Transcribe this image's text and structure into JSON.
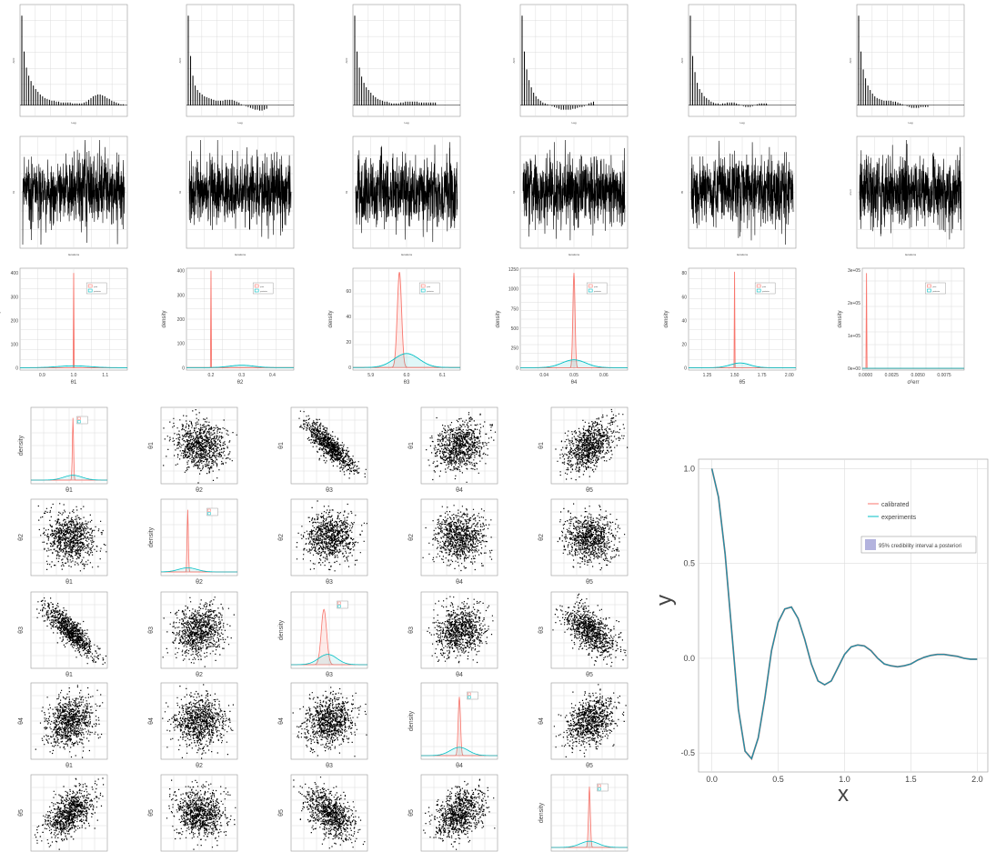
{
  "colors": {
    "calibrated": "#F8766D",
    "experiments": "#00BFC4",
    "band": "#b3b3de",
    "ink": "#000000",
    "grid": "#dcdcdc",
    "frame": "#9a9a9a"
  },
  "rows": {
    "acf_ylabel": "ACF",
    "acf_xlabel": "Lag",
    "trace_xlabel": "iterations",
    "trace_ylabels": [
      "θ1",
      "θ2",
      "θ3",
      "θ4",
      "θ5",
      "σ²err"
    ],
    "density_ylabel": "density",
    "density_xlabels": [
      "θ1",
      "θ2",
      "θ3",
      "θ4",
      "θ5",
      "σ²err"
    ],
    "legend_labels": [
      "prior",
      "posterior"
    ]
  },
  "pairs": {
    "labels": [
      "θ1",
      "θ2",
      "θ3",
      "θ4",
      "θ5"
    ],
    "density_ylabel": "density"
  },
  "chart_data": [
    {
      "type": "bar",
      "name": "acf",
      "title": "",
      "xlabel": "Lag",
      "ylabel": "ACF",
      "panels": 6,
      "values": [
        [
          1.0,
          0.6,
          0.42,
          0.33,
          0.27,
          0.22,
          0.18,
          0.15,
          0.12,
          0.1,
          0.08,
          0.07,
          0.06,
          0.05,
          0.05,
          0.04,
          0.04,
          0.03,
          0.03,
          0.03,
          0.03,
          0.03,
          0.02,
          0.02,
          0.02,
          0.02,
          0.02,
          0.03,
          0.04,
          0.06,
          0.08,
          0.1,
          0.11,
          0.12,
          0.12,
          0.11,
          0.1,
          0.08,
          0.07,
          0.05,
          0.04,
          0.03,
          0.02,
          0.01,
          0.01
        ],
        [
          1.0,
          0.55,
          0.33,
          0.22,
          0.17,
          0.14,
          0.12,
          0.1,
          0.09,
          0.08,
          0.07,
          0.06,
          0.05,
          0.05,
          0.05,
          0.05,
          0.06,
          0.06,
          0.06,
          0.06,
          0.05,
          0.04,
          0.03,
          0.01,
          0.0,
          -0.01,
          -0.02,
          -0.03,
          -0.04,
          -0.05,
          -0.05,
          -0.06,
          -0.06,
          -0.05,
          -0.04
        ],
        [
          1.0,
          0.6,
          0.42,
          0.32,
          0.25,
          0.2,
          0.17,
          0.14,
          0.11,
          0.09,
          0.07,
          0.06,
          0.05,
          0.04,
          0.04,
          0.03,
          0.02,
          0.02,
          0.02,
          0.02,
          0.03,
          0.03,
          0.04,
          0.04,
          0.04,
          0.04,
          0.04,
          0.04,
          0.03,
          0.03,
          0.03,
          0.03,
          0.03,
          0.03,
          0.03,
          0.03
        ],
        [
          1.0,
          0.6,
          0.4,
          0.28,
          0.2,
          0.14,
          0.1,
          0.07,
          0.05,
          0.03,
          0.02,
          0.01,
          0.0,
          -0.01,
          -0.02,
          -0.03,
          -0.04,
          -0.05,
          -0.05,
          -0.05,
          -0.05,
          -0.05,
          -0.04,
          -0.04,
          -0.03,
          -0.02,
          -0.02,
          -0.01,
          0.0,
          0.02,
          0.03,
          0.04
        ],
        [
          1.0,
          0.55,
          0.37,
          0.25,
          0.18,
          0.14,
          0.1,
          0.08,
          0.06,
          0.04,
          0.03,
          0.02,
          0.02,
          0.01,
          0.02,
          0.02,
          0.03,
          0.03,
          0.03,
          0.03,
          0.02,
          0.01,
          0.0,
          -0.01,
          -0.02,
          -0.02,
          -0.02,
          -0.01,
          0.0,
          0.01,
          0.02,
          0.02,
          0.02,
          0.02
        ],
        [
          1.0,
          0.6,
          0.4,
          0.3,
          0.22,
          0.17,
          0.13,
          0.1,
          0.08,
          0.07,
          0.06,
          0.05,
          0.05,
          0.05,
          0.05,
          0.04,
          0.04,
          0.03,
          0.02,
          0.01,
          0.0,
          -0.01,
          -0.02,
          -0.03,
          -0.03,
          -0.03,
          -0.03,
          -0.02,
          -0.02,
          -0.02,
          -0.02
        ]
      ]
    },
    {
      "type": "density",
      "name": "marginal-densities",
      "title": "",
      "ylabel": "density",
      "series": [
        {
          "name": "prior"
        },
        {
          "name": "posterior"
        }
      ],
      "panels": [
        {
          "xlabel": "θ1",
          "xticks": [
            "0.9",
            "1.0",
            "1.1"
          ],
          "xlim": [
            0.83,
            1.17
          ],
          "yticks": [
            "0",
            "100",
            "200",
            "300",
            "400"
          ],
          "ylim": [
            -10,
            420
          ],
          "curves": [
            {
              "kind": "spike",
              "mu": 1.0,
              "sd": 0.001,
              "peak": 400
            },
            {
              "kind": "gauss",
              "mu": 1.0,
              "sd": 0.05,
              "peak": 8
            }
          ]
        },
        {
          "xlabel": "θ2",
          "xticks": [
            "0.2",
            "0.3",
            "0.4"
          ],
          "xlim": [
            0.12,
            0.47
          ],
          "yticks": [
            "0",
            "100",
            "200",
            "300",
            "400"
          ],
          "ylim": [
            -10,
            410
          ],
          "curves": [
            {
              "kind": "spike",
              "mu": 0.2,
              "sd": 0.001,
              "peak": 400
            },
            {
              "kind": "gauss",
              "mu": 0.3,
              "sd": 0.04,
              "peak": 10
            }
          ]
        },
        {
          "xlabel": "θ3",
          "xticks": [
            "5.9",
            "6.0",
            "6.1"
          ],
          "xlim": [
            5.85,
            6.15
          ],
          "yticks": [
            "0",
            "20",
            "40",
            "60"
          ],
          "ylim": [
            -2,
            78
          ],
          "curves": [
            {
              "kind": "gauss",
              "mu": 5.98,
              "sd": 0.006,
              "peak": 75
            },
            {
              "kind": "gauss",
              "mu": 6.0,
              "sd": 0.035,
              "peak": 11
            }
          ]
        },
        {
          "xlabel": "θ4",
          "xticks": [
            "0.04",
            "0.05",
            "0.06"
          ],
          "xlim": [
            0.032,
            0.068
          ],
          "yticks": [
            "0",
            "250",
            "500",
            "750",
            "1000",
            "1250"
          ],
          "ylim": [
            -30,
            1260
          ],
          "curves": [
            {
              "kind": "gauss",
              "mu": 0.05,
              "sd": 0.00035,
              "peak": 1200
            },
            {
              "kind": "gauss",
              "mu": 0.05,
              "sd": 0.004,
              "peak": 100
            }
          ]
        },
        {
          "xlabel": "θ5",
          "xticks": [
            "1.25",
            "1.50",
            "1.75",
            "2.00"
          ],
          "xlim": [
            1.08,
            2.06
          ],
          "yticks": [
            "0",
            "20",
            "40",
            "60",
            "80"
          ],
          "ylim": [
            -2,
            84
          ],
          "curves": [
            {
              "kind": "spike",
              "mu": 1.5,
              "sd": 0.0025,
              "peak": 81
            },
            {
              "kind": "gauss",
              "mu": 1.55,
              "sd": 0.09,
              "peak": 4
            }
          ]
        },
        {
          "xlabel": "σ²err",
          "xticks": [
            "0.0000",
            "0.0025",
            "0.0050",
            "0.0075"
          ],
          "xlim": [
            -0.0003,
            0.0094
          ],
          "yticks": [
            "0e+00",
            "1e+05",
            "2e+05",
            "3e+05"
          ],
          "ylim": [
            -5000,
            305000
          ],
          "curves": [
            {
              "kind": "spike",
              "mu": 0.0001,
              "sd": 2e-05,
              "peak": 290000
            },
            {
              "kind": "flat",
              "peak": 200
            }
          ]
        }
      ]
    },
    {
      "type": "line",
      "name": "calibration-plot",
      "title": "",
      "xlabel": "x",
      "ylabel": "y",
      "xlim": [
        -0.1,
        2.08
      ],
      "ylim": [
        -0.6,
        1.05
      ],
      "xticks": [
        "0.0",
        "0.5",
        "1.0",
        "1.5",
        "2.0"
      ],
      "yticks": [
        "-0.5",
        "0.0",
        "0.5",
        "1.0"
      ],
      "x": [
        0,
        0.05,
        0.1,
        0.15,
        0.2,
        0.25,
        0.3,
        0.35,
        0.4,
        0.45,
        0.5,
        0.55,
        0.6,
        0.65,
        0.7,
        0.75,
        0.8,
        0.85,
        0.9,
        0.95,
        1.0,
        1.05,
        1.1,
        1.15,
        1.2,
        1.25,
        1.3,
        1.35,
        1.4,
        1.45,
        1.5,
        1.55,
        1.6,
        1.65,
        1.7,
        1.75,
        1.8,
        1.85,
        1.9,
        1.95,
        2.0
      ],
      "series": [
        {
          "name": "calibrated",
          "y": [
            1.0,
            0.85,
            0.55,
            0.14,
            -0.27,
            -0.49,
            -0.53,
            -0.42,
            -0.21,
            0.04,
            0.19,
            0.26,
            0.27,
            0.21,
            0.1,
            -0.03,
            -0.12,
            -0.14,
            -0.12,
            -0.05,
            0.02,
            0.06,
            0.07,
            0.065,
            0.04,
            0.0,
            -0.03,
            -0.04,
            -0.045,
            -0.04,
            -0.03,
            -0.01,
            0.005,
            0.015,
            0.02,
            0.02,
            0.015,
            0.01,
            0.0,
            -0.005,
            -0.005
          ]
        },
        {
          "name": "experiments",
          "y": [
            1.0,
            0.85,
            0.55,
            0.14,
            -0.27,
            -0.49,
            -0.53,
            -0.42,
            -0.21,
            0.04,
            0.19,
            0.26,
            0.27,
            0.21,
            0.1,
            -0.03,
            -0.12,
            -0.14,
            -0.12,
            -0.05,
            0.02,
            0.06,
            0.07,
            0.065,
            0.04,
            0.0,
            -0.03,
            -0.04,
            -0.045,
            -0.04,
            -0.03,
            -0.01,
            0.005,
            0.015,
            0.02,
            0.02,
            0.015,
            0.01,
            0.0,
            -0.005,
            -0.005
          ]
        }
      ],
      "band_label": "95% credibility interval a posteriori"
    }
  ]
}
